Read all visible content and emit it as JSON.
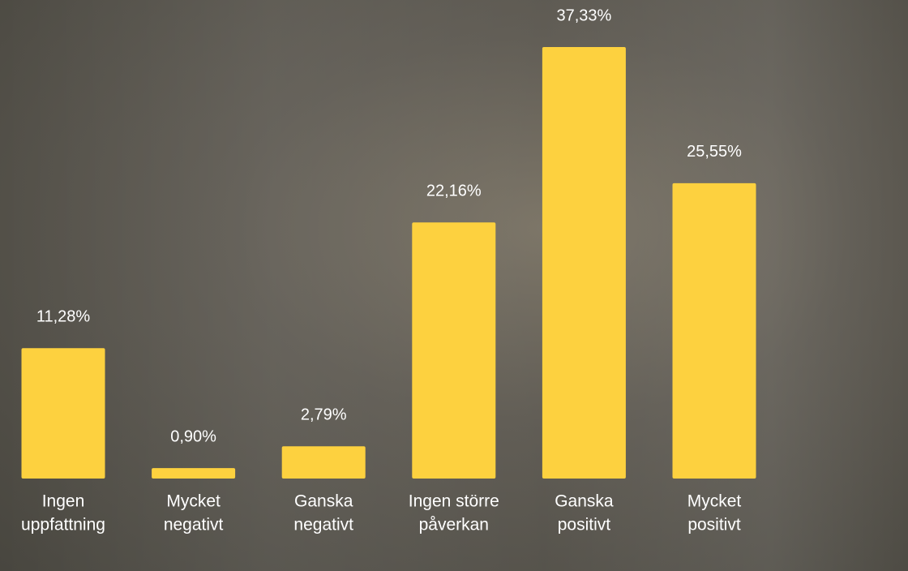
{
  "chart_data": {
    "type": "bar",
    "categories": [
      [
        "Ingen",
        "uppfattning"
      ],
      [
        "Mycket",
        "negativt"
      ],
      [
        "Ganska",
        "negativt"
      ],
      [
        "Ingen större",
        "påverkan"
      ],
      [
        "Ganska",
        "positivt"
      ],
      [
        "Mycket",
        "positivt"
      ]
    ],
    "values": [
      11.28,
      0.9,
      2.79,
      22.16,
      37.33,
      25.55
    ],
    "value_labels": [
      "11,28%",
      "0,90%",
      "2,79%",
      "22,16%",
      "37,33%",
      "25,55%"
    ],
    "color": "#fdd13f"
  }
}
